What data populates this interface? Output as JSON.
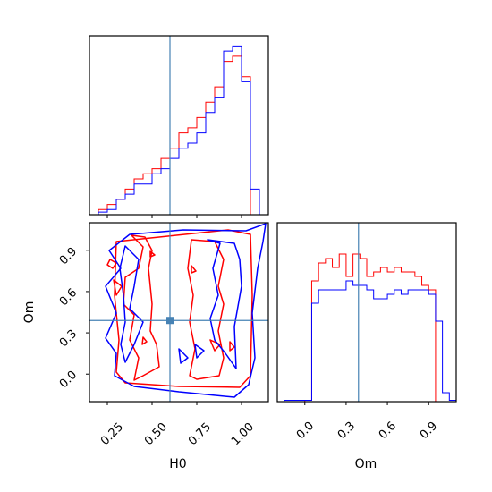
{
  "chart_data": {
    "type": "corner",
    "parameters": [
      "H0",
      "Om"
    ],
    "truth": {
      "H0": 0.6,
      "Om": 0.39
    },
    "truth_color": "#4682b4",
    "series": [
      {
        "color": "#ff0000"
      },
      {
        "color": "#0000ff"
      }
    ],
    "panels": {
      "hist_H0": {
        "xlim": [
          0.15,
          1.15
        ],
        "bin_edges": [
          0.2,
          0.25,
          0.3,
          0.35,
          0.4,
          0.45,
          0.5,
          0.55,
          0.6,
          0.65,
          0.7,
          0.75,
          0.8,
          0.85,
          0.9,
          0.95,
          1.0,
          1.05,
          1.1
        ],
        "counts": [
          [
            1,
            2,
            3,
            5,
            7,
            8,
            9,
            11,
            13,
            16,
            17,
            19,
            22,
            25,
            30,
            31,
            27,
            0
          ],
          [
            0.5,
            1,
            3,
            4,
            6,
            6,
            8,
            9,
            11,
            13,
            14,
            16,
            20,
            23,
            32,
            33,
            26,
            5
          ]
        ],
        "ymax": 35
      },
      "contour_H0_Om": {
        "xlim": [
          0.15,
          1.15
        ],
        "ylim": [
          -0.2,
          1.1
        ],
        "x_ticks": [
          "0.25",
          "0.50",
          "0.75",
          "1.00"
        ],
        "y_ticks": [
          "0.0",
          "0.3",
          "0.6",
          "0.9"
        ]
      },
      "hist_Om": {
        "xlim": [
          -0.2,
          1.1
        ],
        "bin_edges": [
          -0.15,
          -0.1,
          -0.05,
          0.0,
          0.05,
          0.1,
          0.15,
          0.2,
          0.25,
          0.3,
          0.35,
          0.4,
          0.45,
          0.5,
          0.55,
          0.6,
          0.65,
          0.7,
          0.75,
          0.8,
          0.85,
          0.9,
          0.95,
          1.0,
          1.05,
          1.1
        ],
        "counts": [
          [
            0,
            0,
            0,
            0.3,
            27,
            31,
            32,
            30,
            33,
            28,
            33,
            32,
            28,
            29,
            30,
            29,
            30,
            29,
            29,
            28,
            26,
            25,
            0,
            0,
            0
          ],
          [
            0.3,
            0.3,
            0.3,
            0.3,
            22,
            25,
            25,
            25,
            25,
            27,
            26,
            26,
            25,
            23,
            23,
            24,
            25,
            24,
            25,
            25,
            25,
            24,
            18,
            2,
            0.3
          ]
        ],
        "ymax": 40,
        "x_ticks": [
          "0.0",
          "0.3",
          "0.6",
          "0.9"
        ]
      }
    },
    "xlabels": [
      "H0",
      "Om"
    ],
    "ylabels": [
      "Om"
    ]
  }
}
